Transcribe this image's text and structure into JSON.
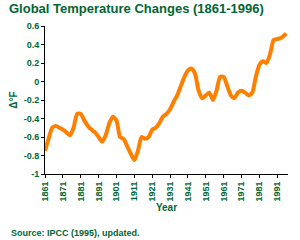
{
  "chart_data": {
    "type": "line",
    "title": "Global Temperature Changes (1861-1996)",
    "x_label": "Year",
    "y_label": "Δ°F",
    "annotations": [
      "Source: IPCC (1995), updated."
    ],
    "x": [
      1861,
      1863,
      1865,
      1867,
      1869,
      1871,
      1873,
      1875,
      1877,
      1879,
      1881,
      1883,
      1885,
      1887,
      1889,
      1891,
      1893,
      1895,
      1897,
      1899,
      1901,
      1903,
      1905,
      1907,
      1909,
      1911,
      1913,
      1915,
      1917,
      1919,
      1921,
      1923,
      1925,
      1927,
      1929,
      1931,
      1933,
      1935,
      1937,
      1939,
      1941,
      1943,
      1945,
      1947,
      1949,
      1951,
      1953,
      1955,
      1957,
      1959,
      1961,
      1963,
      1965,
      1967,
      1969,
      1971,
      1973,
      1975,
      1977,
      1979,
      1981,
      1983,
      1985,
      1987,
      1989,
      1991,
      1993,
      1995,
      1996
    ],
    "values": [
      -0.75,
      -0.62,
      -0.5,
      -0.48,
      -0.5,
      -0.52,
      -0.55,
      -0.58,
      -0.5,
      -0.35,
      -0.35,
      -0.42,
      -0.48,
      -0.52,
      -0.55,
      -0.6,
      -0.65,
      -0.58,
      -0.45,
      -0.38,
      -0.42,
      -0.6,
      -0.62,
      -0.7,
      -0.78,
      -0.85,
      -0.75,
      -0.6,
      -0.62,
      -0.6,
      -0.52,
      -0.5,
      -0.45,
      -0.38,
      -0.35,
      -0.3,
      -0.22,
      -0.15,
      -0.05,
      0.05,
      0.12,
      0.14,
      0.08,
      -0.1,
      -0.18,
      -0.15,
      -0.12,
      -0.2,
      -0.1,
      0.05,
      0.05,
      -0.05,
      -0.15,
      -0.18,
      -0.12,
      -0.1,
      -0.12,
      -0.15,
      -0.12,
      0.05,
      0.18,
      0.22,
      0.2,
      0.3,
      0.45,
      0.46,
      0.47,
      0.5,
      0.52
    ],
    "color": "#ff7f00",
    "line_style": "solid",
    "xlim": [
      1861,
      1997
    ],
    "xticks": [
      1861,
      1871,
      1881,
      1891,
      1901,
      1911,
      1921,
      1931,
      1941,
      1951,
      1961,
      1971,
      1981,
      1991
    ],
    "ylim": [
      -1,
      0.6
    ],
    "yticks": [
      -1,
      -0.8,
      -0.6,
      -0.4,
      -0.2,
      0,
      0.2,
      0.4,
      0.6
    ],
    "grid": false
  }
}
